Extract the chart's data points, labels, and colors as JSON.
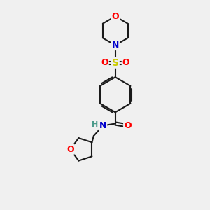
{
  "background_color": "#f0f0f0",
  "bond_color": "#1a1a1a",
  "bond_width": 1.5,
  "atom_colors": {
    "O": "#ff0000",
    "N": "#0000cc",
    "S": "#cccc00",
    "H": "#4a9a8a",
    "C": "#1a1a1a"
  },
  "font_size_atom": 9,
  "fig_size": [
    3.0,
    3.0
  ],
  "dpi": 100
}
